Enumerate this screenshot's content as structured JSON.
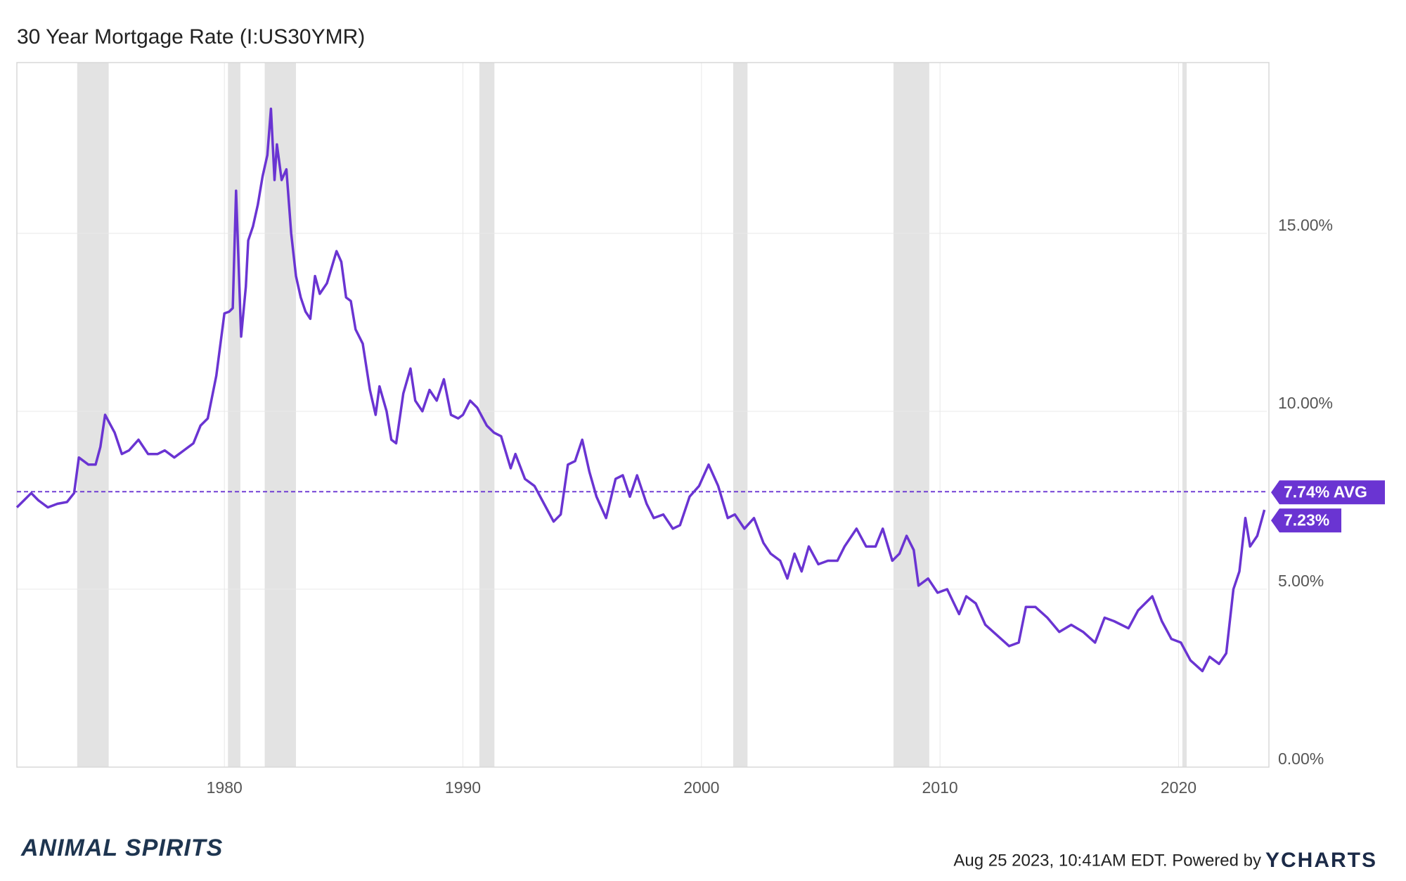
{
  "chart_data": {
    "type": "line",
    "title": "30 Year Mortgage Rate (I:US30YMR)",
    "x": [
      1971.3,
      1971.6,
      1971.9,
      1972.2,
      1972.6,
      1973.0,
      1973.4,
      1973.7,
      1973.9,
      1974.3,
      1974.6,
      1974.8,
      1975.0,
      1975.4,
      1975.7,
      1976.0,
      1976.4,
      1976.8,
      1977.2,
      1977.5,
      1977.9,
      1978.3,
      1978.7,
      1979.0,
      1979.3,
      1979.66,
      1980.0,
      1980.2,
      1980.35,
      1980.49,
      1980.7,
      1980.9,
      1981.0,
      1981.2,
      1981.4,
      1981.6,
      1981.8,
      1981.95,
      1982.1,
      1982.2,
      1982.4,
      1982.6,
      1982.8,
      1983.0,
      1983.2,
      1983.4,
      1983.6,
      1983.8,
      1984.0,
      1984.3,
      1984.7,
      1984.9,
      1985.1,
      1985.3,
      1985.5,
      1985.8,
      1986.1,
      1986.34,
      1986.5,
      1986.8,
      1987.0,
      1987.2,
      1987.5,
      1987.8,
      1988.0,
      1988.3,
      1988.6,
      1988.9,
      1989.2,
      1989.5,
      1989.8,
      1990.0,
      1990.3,
      1990.6,
      1991.0,
      1991.3,
      1991.6,
      1992.0,
      1992.2,
      1992.6,
      1993.0,
      1993.4,
      1993.8,
      1994.1,
      1994.4,
      1994.7,
      1995.0,
      1995.3,
      1995.6,
      1996.0,
      1996.4,
      1996.7,
      1997.0,
      1997.3,
      1997.7,
      1998.0,
      1998.4,
      1998.8,
      1999.1,
      1999.5,
      1999.9,
      2000.3,
      2000.7,
      2001.1,
      2001.4,
      2001.8,
      2002.2,
      2002.6,
      2002.9,
      2003.3,
      2003.6,
      2003.9,
      2004.2,
      2004.5,
      2004.9,
      2005.3,
      2005.7,
      2006.0,
      2006.5,
      2006.9,
      2007.3,
      2007.6,
      2008.0,
      2008.3,
      2008.6,
      2008.9,
      2009.1,
      2009.5,
      2009.9,
      2010.3,
      2010.8,
      2011.1,
      2011.5,
      2011.9,
      2012.4,
      2012.9,
      2013.3,
      2013.6,
      2014.0,
      2014.5,
      2015.0,
      2015.5,
      2016.0,
      2016.5,
      2016.9,
      2017.3,
      2017.9,
      2018.3,
      2018.9,
      2019.3,
      2019.7,
      2020.1,
      2020.5,
      2021.0,
      2021.3,
      2021.7,
      2022.0,
      2022.3,
      2022.55,
      2022.8,
      2023.0,
      2023.3,
      2023.6
    ],
    "series": [
      {
        "color": "#6a34d2",
        "values": [
          7.3,
          7.5,
          7.7,
          7.5,
          7.3,
          7.4,
          7.45,
          7.7,
          8.7,
          8.5,
          8.5,
          9.0,
          9.9,
          9.4,
          8.8,
          8.9,
          9.2,
          8.8,
          8.8,
          8.9,
          8.7,
          8.9,
          9.1,
          9.6,
          9.8,
          11.0,
          12.75,
          12.8,
          12.9,
          16.2,
          12.1,
          13.5,
          14.8,
          15.2,
          15.8,
          16.6,
          17.2,
          18.5,
          16.5,
          17.5,
          16.5,
          16.8,
          15.0,
          13.8,
          13.2,
          12.8,
          12.6,
          13.8,
          13.3,
          13.6,
          14.5,
          14.2,
          13.2,
          13.1,
          12.3,
          11.9,
          10.6,
          9.9,
          10.7,
          10.0,
          9.2,
          9.1,
          10.5,
          11.2,
          10.3,
          10.0,
          10.6,
          10.3,
          10.9,
          9.9,
          9.8,
          9.9,
          10.3,
          10.1,
          9.6,
          9.4,
          9.3,
          8.4,
          8.8,
          8.1,
          7.9,
          7.4,
          6.9,
          7.1,
          8.5,
          8.6,
          9.2,
          8.3,
          7.6,
          7.0,
          8.1,
          8.2,
          7.6,
          8.2,
          7.4,
          7.0,
          7.1,
          6.7,
          6.8,
          7.6,
          7.9,
          8.5,
          7.9,
          7.0,
          7.1,
          6.7,
          7.0,
          6.3,
          6.0,
          5.8,
          5.3,
          6.0,
          5.5,
          6.2,
          5.7,
          5.8,
          5.8,
          6.2,
          6.7,
          6.2,
          6.2,
          6.7,
          5.8,
          6.0,
          6.5,
          6.1,
          5.1,
          5.3,
          4.9,
          5.0,
          4.3,
          4.8,
          4.6,
          4.0,
          3.7,
          3.4,
          3.5,
          4.5,
          4.5,
          4.2,
          3.8,
          4.0,
          3.8,
          3.5,
          4.2,
          4.1,
          3.9,
          4.4,
          4.8,
          4.1,
          3.6,
          3.5,
          3.0,
          2.7,
          3.1,
          2.9,
          3.2,
          5.0,
          5.5,
          7.0,
          6.2,
          6.5,
          7.23
        ]
      }
    ],
    "xlim": [
      1971.3,
      2023.7
    ],
    "xticks": [
      1980,
      1990,
      2000,
      2010,
      2020
    ],
    "ylim": [
      0,
      19.8
    ],
    "yticks": [
      {
        "value": 0,
        "label": "0.00%"
      },
      {
        "value": 5,
        "label": "5.00%"
      },
      {
        "value": 10,
        "label": "10.00%"
      },
      {
        "value": 15,
        "label": "15.00%"
      }
    ],
    "grid": true,
    "shaded_periods": [
      [
        1973.83,
        1975.15
      ],
      [
        1980.15,
        1980.67
      ],
      [
        1981.69,
        1983.0
      ],
      [
        1990.69,
        1991.32
      ],
      [
        2001.33,
        2001.93
      ],
      [
        2008.05,
        2009.55
      ],
      [
        2020.16,
        2020.34
      ]
    ],
    "shade_color": "#e3e3e3",
    "avg": {
      "value": 7.74,
      "label": "7.74% AVG"
    },
    "current": {
      "value": 7.23,
      "label": "7.23%"
    },
    "footer": "Aug 25 2023, 10:41AM EDT. Powered by",
    "brand": "YCHARTS",
    "logo": "ANIMAL SPIRITS"
  }
}
